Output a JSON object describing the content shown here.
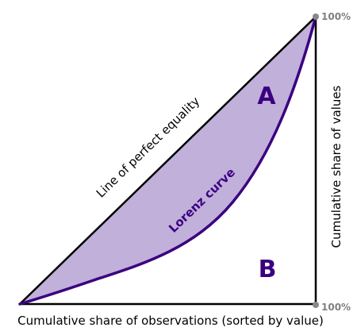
{
  "diagram": {
    "labels": {
      "equality_line": "Line of perfect equality",
      "lorenz_curve": "Lorenz curve",
      "area_a": "A",
      "area_b": "B",
      "x_axis": "Cumulative share of observations (sorted by value)",
      "y_axis": "Cumulative share of values",
      "x_end": "100%",
      "y_end": "100%"
    },
    "colors": {
      "area_a_fill": "#c0b0da",
      "curve": "#3b0080",
      "region_letters": "#3b0080",
      "axes": "#000000",
      "marker": "#888888",
      "percent_text": "#808080"
    }
  }
}
